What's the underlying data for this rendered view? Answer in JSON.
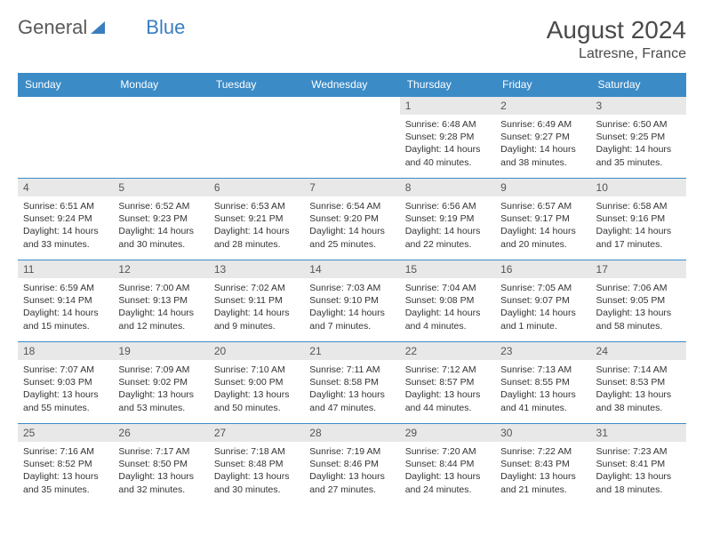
{
  "brand": {
    "part1": "General",
    "part2": "Blue"
  },
  "title": "August 2024",
  "location": "Latresne, France",
  "colors": {
    "header_bg": "#3b8bc7",
    "header_text": "#ffffff",
    "daynum_bg": "#e8e8e8",
    "border": "#3b8bc7",
    "text": "#333333",
    "logo_gray": "#5a5a5a",
    "logo_blue": "#3a7ebf"
  },
  "fonts": {
    "title_size": 28,
    "location_size": 16,
    "dow_size": 12,
    "daynum_size": 12,
    "body_size": 10.5
  },
  "dow": [
    "Sunday",
    "Monday",
    "Tuesday",
    "Wednesday",
    "Thursday",
    "Friday",
    "Saturday"
  ],
  "weeks": [
    [
      null,
      null,
      null,
      null,
      {
        "n": "1",
        "sr": "6:48 AM",
        "ss": "9:28 PM",
        "dl": "14 hours and 40 minutes."
      },
      {
        "n": "2",
        "sr": "6:49 AM",
        "ss": "9:27 PM",
        "dl": "14 hours and 38 minutes."
      },
      {
        "n": "3",
        "sr": "6:50 AM",
        "ss": "9:25 PM",
        "dl": "14 hours and 35 minutes."
      }
    ],
    [
      {
        "n": "4",
        "sr": "6:51 AM",
        "ss": "9:24 PM",
        "dl": "14 hours and 33 minutes."
      },
      {
        "n": "5",
        "sr": "6:52 AM",
        "ss": "9:23 PM",
        "dl": "14 hours and 30 minutes."
      },
      {
        "n": "6",
        "sr": "6:53 AM",
        "ss": "9:21 PM",
        "dl": "14 hours and 28 minutes."
      },
      {
        "n": "7",
        "sr": "6:54 AM",
        "ss": "9:20 PM",
        "dl": "14 hours and 25 minutes."
      },
      {
        "n": "8",
        "sr": "6:56 AM",
        "ss": "9:19 PM",
        "dl": "14 hours and 22 minutes."
      },
      {
        "n": "9",
        "sr": "6:57 AM",
        "ss": "9:17 PM",
        "dl": "14 hours and 20 minutes."
      },
      {
        "n": "10",
        "sr": "6:58 AM",
        "ss": "9:16 PM",
        "dl": "14 hours and 17 minutes."
      }
    ],
    [
      {
        "n": "11",
        "sr": "6:59 AM",
        "ss": "9:14 PM",
        "dl": "14 hours and 15 minutes."
      },
      {
        "n": "12",
        "sr": "7:00 AM",
        "ss": "9:13 PM",
        "dl": "14 hours and 12 minutes."
      },
      {
        "n": "13",
        "sr": "7:02 AM",
        "ss": "9:11 PM",
        "dl": "14 hours and 9 minutes."
      },
      {
        "n": "14",
        "sr": "7:03 AM",
        "ss": "9:10 PM",
        "dl": "14 hours and 7 minutes."
      },
      {
        "n": "15",
        "sr": "7:04 AM",
        "ss": "9:08 PM",
        "dl": "14 hours and 4 minutes."
      },
      {
        "n": "16",
        "sr": "7:05 AM",
        "ss": "9:07 PM",
        "dl": "14 hours and 1 minute."
      },
      {
        "n": "17",
        "sr": "7:06 AM",
        "ss": "9:05 PM",
        "dl": "13 hours and 58 minutes."
      }
    ],
    [
      {
        "n": "18",
        "sr": "7:07 AM",
        "ss": "9:03 PM",
        "dl": "13 hours and 55 minutes."
      },
      {
        "n": "19",
        "sr": "7:09 AM",
        "ss": "9:02 PM",
        "dl": "13 hours and 53 minutes."
      },
      {
        "n": "20",
        "sr": "7:10 AM",
        "ss": "9:00 PM",
        "dl": "13 hours and 50 minutes."
      },
      {
        "n": "21",
        "sr": "7:11 AM",
        "ss": "8:58 PM",
        "dl": "13 hours and 47 minutes."
      },
      {
        "n": "22",
        "sr": "7:12 AM",
        "ss": "8:57 PM",
        "dl": "13 hours and 44 minutes."
      },
      {
        "n": "23",
        "sr": "7:13 AM",
        "ss": "8:55 PM",
        "dl": "13 hours and 41 minutes."
      },
      {
        "n": "24",
        "sr": "7:14 AM",
        "ss": "8:53 PM",
        "dl": "13 hours and 38 minutes."
      }
    ],
    [
      {
        "n": "25",
        "sr": "7:16 AM",
        "ss": "8:52 PM",
        "dl": "13 hours and 35 minutes."
      },
      {
        "n": "26",
        "sr": "7:17 AM",
        "ss": "8:50 PM",
        "dl": "13 hours and 32 minutes."
      },
      {
        "n": "27",
        "sr": "7:18 AM",
        "ss": "8:48 PM",
        "dl": "13 hours and 30 minutes."
      },
      {
        "n": "28",
        "sr": "7:19 AM",
        "ss": "8:46 PM",
        "dl": "13 hours and 27 minutes."
      },
      {
        "n": "29",
        "sr": "7:20 AM",
        "ss": "8:44 PM",
        "dl": "13 hours and 24 minutes."
      },
      {
        "n": "30",
        "sr": "7:22 AM",
        "ss": "8:43 PM",
        "dl": "13 hours and 21 minutes."
      },
      {
        "n": "31",
        "sr": "7:23 AM",
        "ss": "8:41 PM",
        "dl": "13 hours and 18 minutes."
      }
    ]
  ],
  "labels": {
    "sunrise": "Sunrise:",
    "sunset": "Sunset:",
    "daylight": "Daylight:"
  }
}
